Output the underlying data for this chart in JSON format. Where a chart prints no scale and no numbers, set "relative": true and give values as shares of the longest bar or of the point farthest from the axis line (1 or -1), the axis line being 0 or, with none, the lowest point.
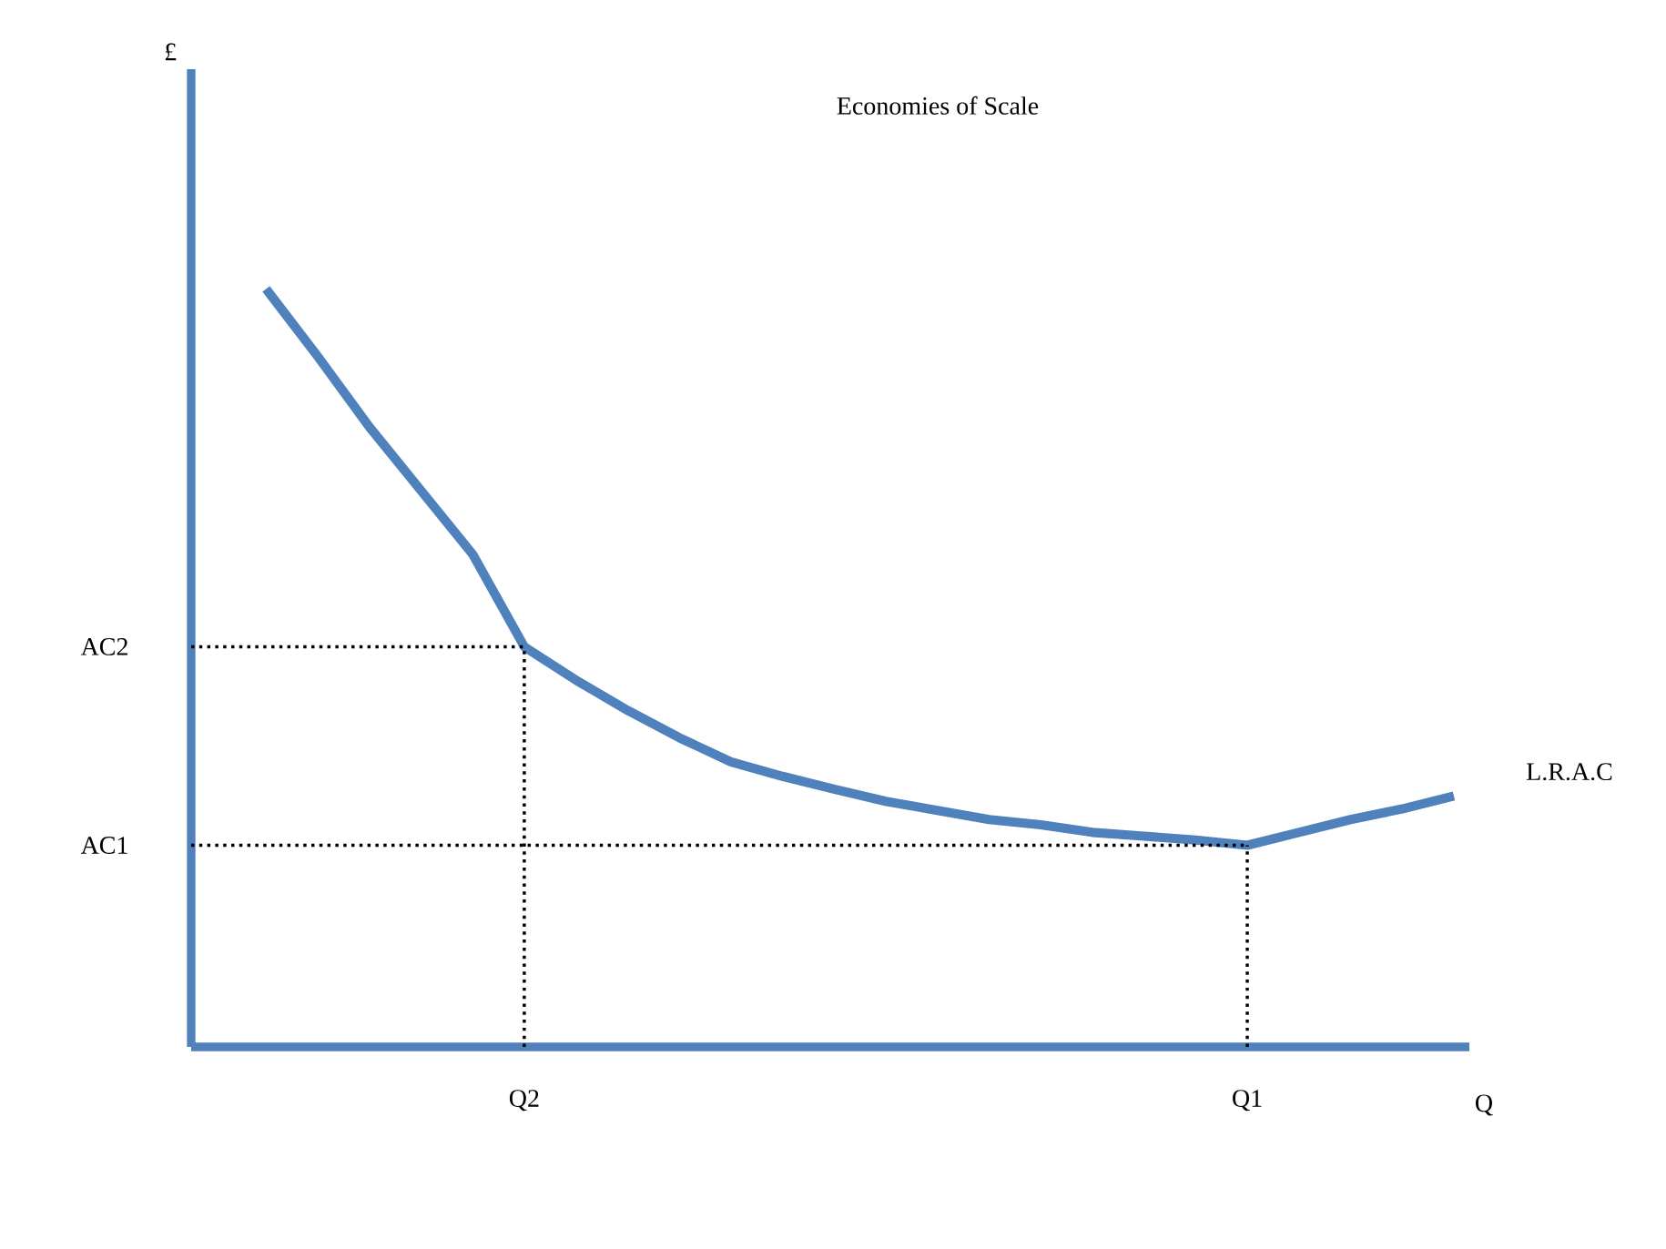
{
  "chart_data": {
    "type": "line",
    "title": "Economies of Scale",
    "xlabel": "Q",
    "annotations": [
      "£",
      "L.R.A.C"
    ],
    "relative": true,
    "color": "#4f81bd",
    "marker": "none",
    "line_style": "solid",
    "categories": [
      null,
      null,
      null,
      null,
      null,
      "Q2",
      null,
      null,
      null,
      null,
      null,
      null,
      null,
      null,
      null,
      null,
      null,
      null,
      null,
      "Q1",
      null,
      null,
      null,
      null
    ],
    "series": [
      {
        "color": "#4f81bd",
        "values": [
          1.0,
          0.911,
          0.818,
          0.734,
          0.65,
          0.528,
          0.484,
          0.444,
          0.408,
          0.376,
          0.357,
          0.34,
          0.324,
          0.312,
          0.3,
          0.293,
          0.283,
          0.278,
          0.273,
          0.266,
          0.283,
          0.3,
          0.314,
          0.331
        ]
      }
    ],
    "ref_lines": [
      {
        "axis": "y",
        "value": 0.528,
        "label": "AC2",
        "line_style": "dotted",
        "color": "#000000"
      },
      {
        "axis": "y",
        "value": 0.266,
        "label": "AC1",
        "line_style": "dotted",
        "color": "#000000"
      },
      {
        "axis": "x",
        "value": "Q2",
        "line_style": "dotted",
        "color": "#000000"
      },
      {
        "axis": "x",
        "value": "Q1",
        "line_style": "dotted",
        "color": "#000000"
      }
    ]
  }
}
